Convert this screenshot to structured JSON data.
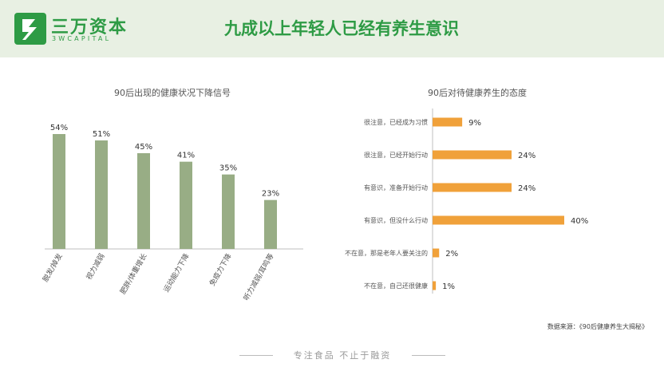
{
  "brand": {
    "name_cn": "三万资本",
    "name_en": "3WCAPITAL",
    "color": "#2e9b45"
  },
  "page_title": "九成以上年轻人已经有养生意识",
  "chart_data": [
    {
      "type": "bar",
      "title": "90后出现的健康状况下降信号",
      "categories": [
        "脱发/掉发",
        "视力减弱",
        "肥胖/体重增长",
        "运动能力下降",
        "免疫力下降",
        "听力减弱/耳鸣等"
      ],
      "values": [
        54,
        51,
        45,
        41,
        35,
        23
      ],
      "value_labels": [
        "54%",
        "51%",
        "45%",
        "41%",
        "35%",
        "23%"
      ],
      "ylim": [
        0,
        60
      ],
      "color": "#98ad85",
      "grid": false
    },
    {
      "type": "bar",
      "orientation": "horizontal",
      "title": "90后对待健康养生的态度",
      "categories": [
        "很注意，已经成为习惯",
        "很注意，已经开始行动",
        "有意识，准备开始行动",
        "有意识，但没什么行动",
        "不在意，那是老年人要关注的",
        "不在意，自己还很健康"
      ],
      "values": [
        9,
        24,
        24,
        40,
        2,
        1
      ],
      "value_labels": [
        "9%",
        "24%",
        "24%",
        "40%",
        "2%",
        "1%"
      ],
      "xlim": [
        0,
        40
      ],
      "color": "#f0a13a",
      "grid": false
    }
  ],
  "source": "数据来源：《90后健康养生大揭秘》",
  "footer": "专注食品 不止于融资"
}
